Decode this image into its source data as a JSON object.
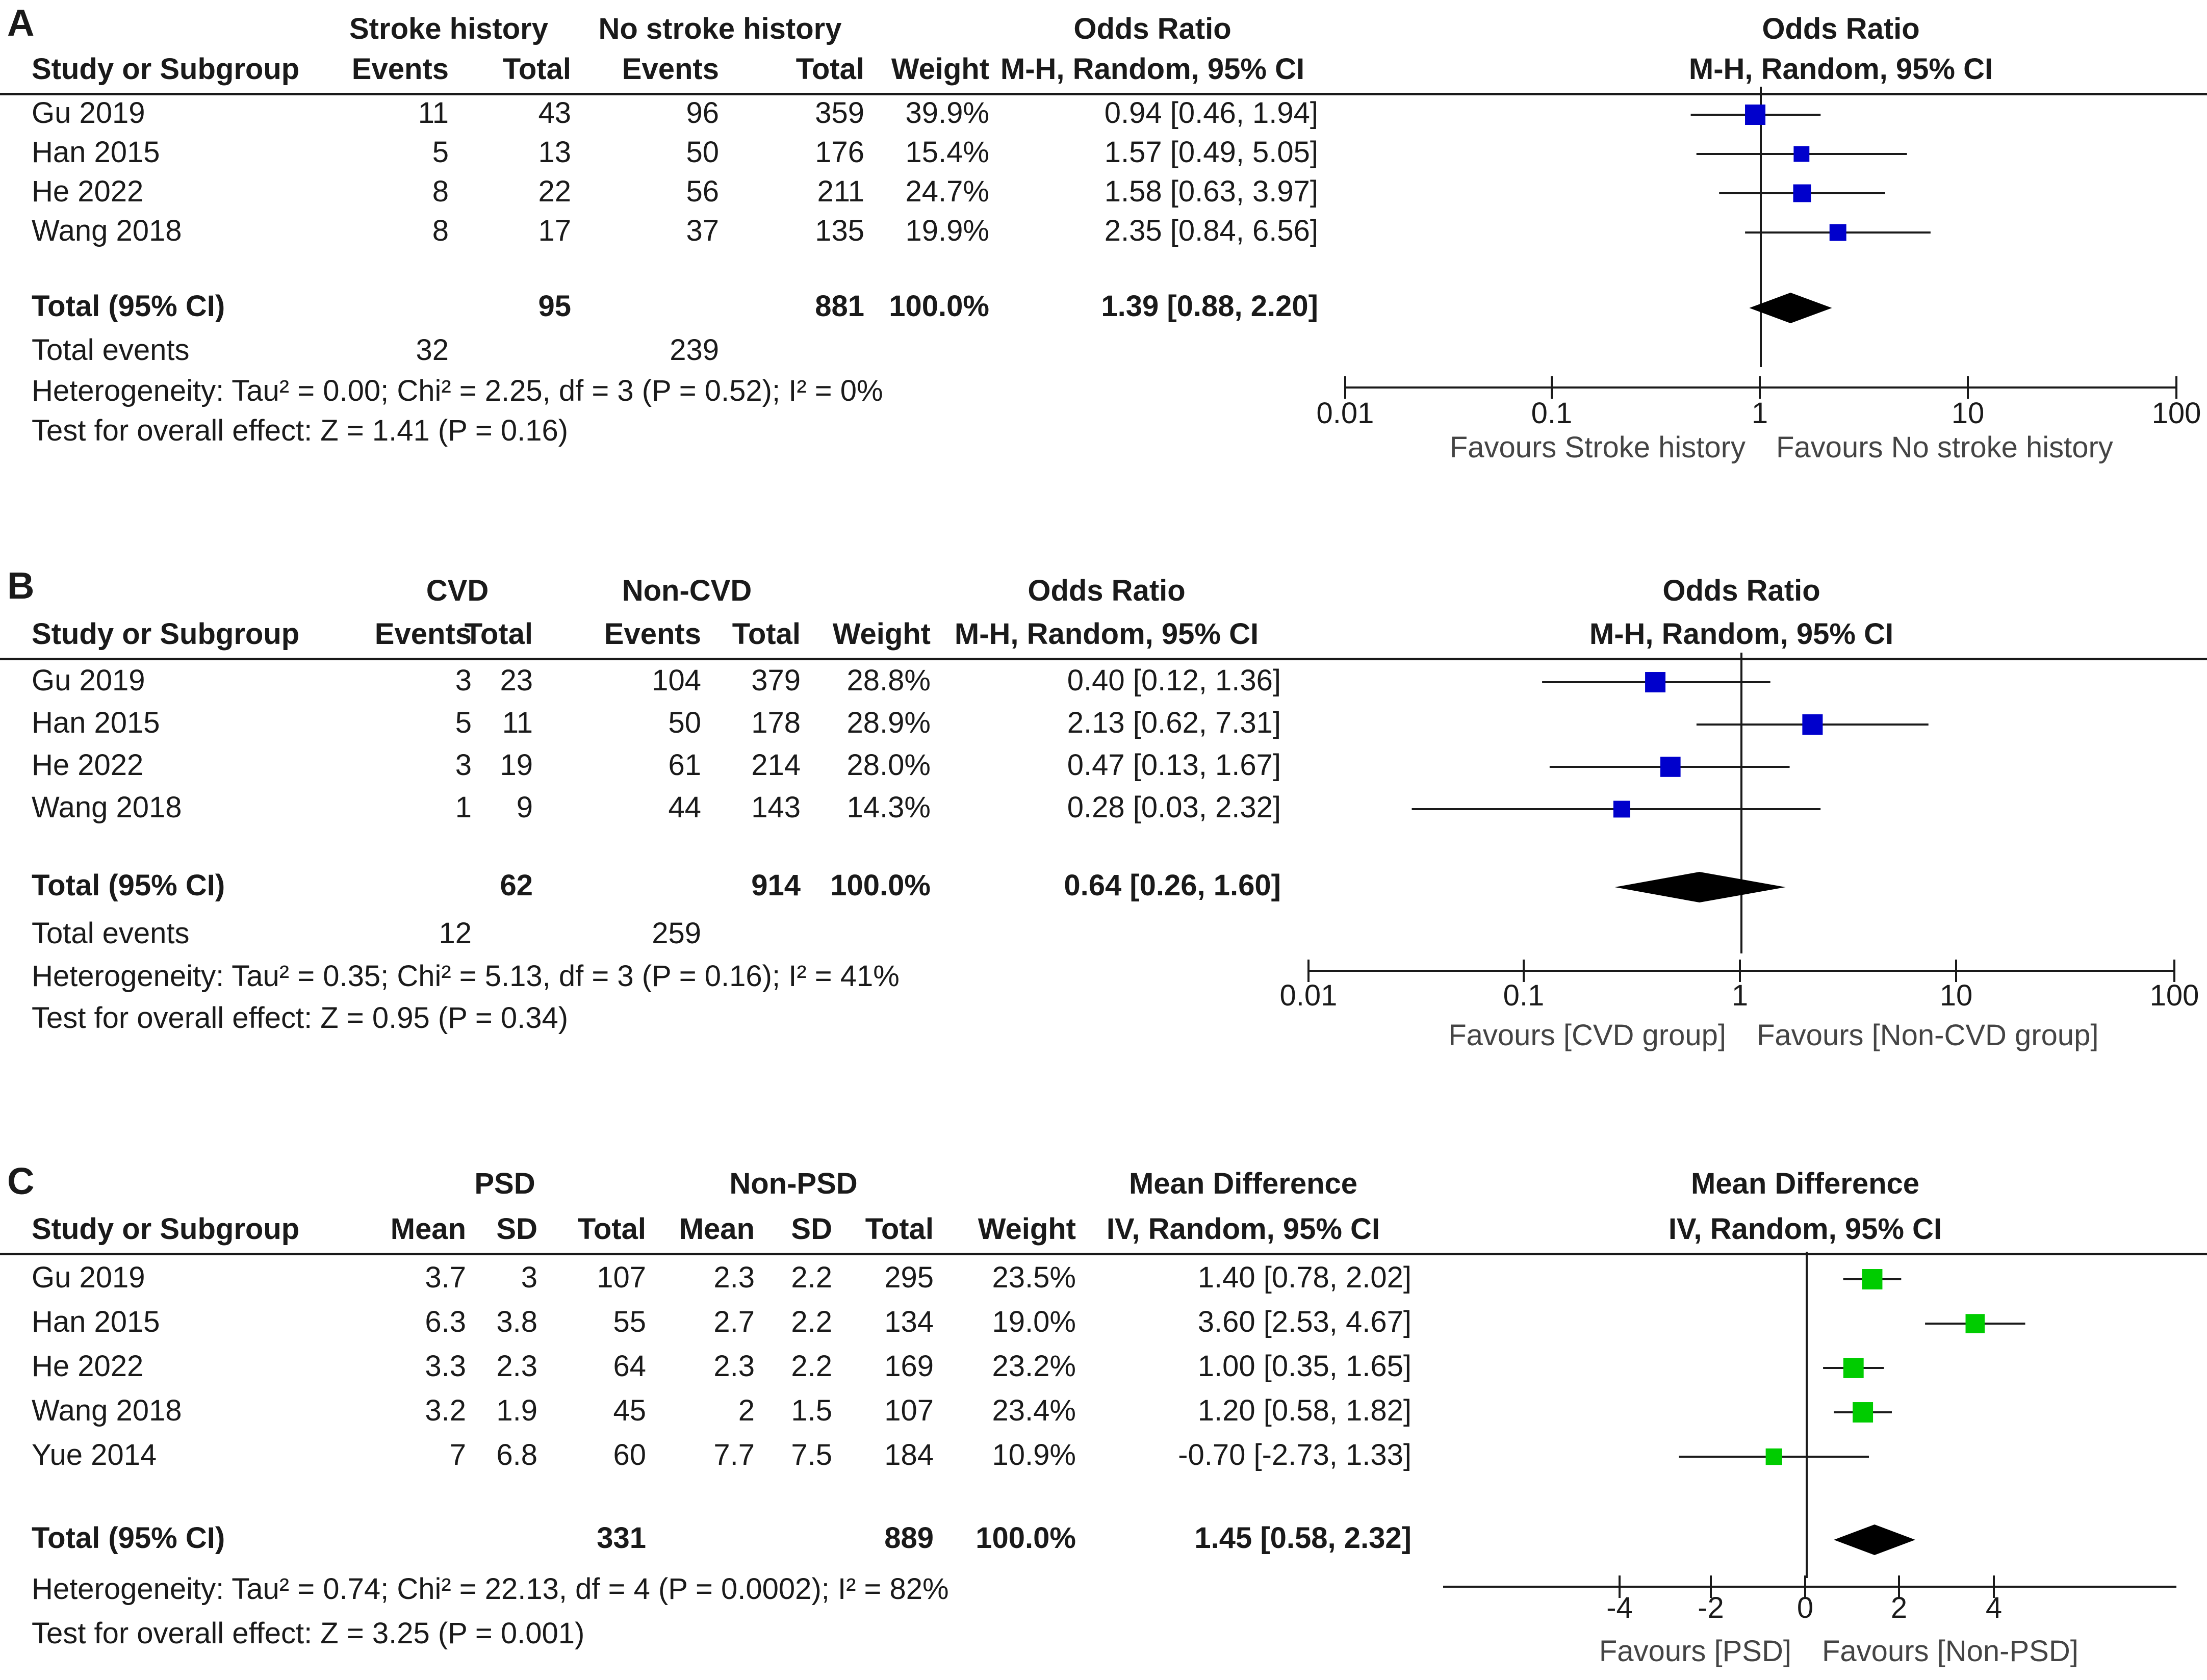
{
  "chart_data": [
    {
      "panel": "A",
      "type": "forest",
      "group1_label": "Stroke history",
      "group2_label": "No stroke history",
      "effect_label": "Odds Ratio",
      "method_label": "M-H, Random, 95% CI",
      "header": {
        "study": "Study or Subgroup",
        "g1": [
          "Events",
          "Total"
        ],
        "g2": [
          "Events",
          "Total"
        ],
        "weight": "Weight"
      },
      "scale": "log",
      "ticks": [
        0.01,
        0.1,
        1,
        10,
        100
      ],
      "tick_labels": [
        "0.01",
        "0.1",
        "1",
        "10",
        "100"
      ],
      "favours_left": "Favours Stroke history",
      "favours_right": "Favours No stroke history",
      "marker_color": "#0000cc",
      "studies": [
        {
          "name": "Gu 2019",
          "g1": [
            "11",
            "43"
          ],
          "g2": [
            "96",
            "359"
          ],
          "weight": "39.9%",
          "ci_text": "0.94 [0.46, 1.94]",
          "est": 0.94,
          "lo": 0.46,
          "hi": 1.94,
          "w": 39.9
        },
        {
          "name": "Han 2015",
          "g1": [
            "5",
            "13"
          ],
          "g2": [
            "50",
            "176"
          ],
          "weight": "15.4%",
          "ci_text": "1.57 [0.49, 5.05]",
          "est": 1.57,
          "lo": 0.49,
          "hi": 5.05,
          "w": 15.4
        },
        {
          "name": "He 2022",
          "g1": [
            "8",
            "22"
          ],
          "g2": [
            "56",
            "211"
          ],
          "weight": "24.7%",
          "ci_text": "1.58 [0.63, 3.97]",
          "est": 1.58,
          "lo": 0.63,
          "hi": 3.97,
          "w": 24.7
        },
        {
          "name": "Wang 2018",
          "g1": [
            "8",
            "17"
          ],
          "g2": [
            "37",
            "135"
          ],
          "weight": "19.9%",
          "ci_text": "2.35 [0.84, 6.56]",
          "est": 2.35,
          "lo": 0.84,
          "hi": 6.56,
          "w": 19.9
        }
      ],
      "total": {
        "label": "Total (95% CI)",
        "g1_total": "95",
        "g2_total": "881",
        "weight": "100.0%",
        "ci_text": "1.39 [0.88, 2.20]",
        "est": 1.39,
        "lo": 0.88,
        "hi": 2.2
      },
      "total_events": {
        "label": "Total events",
        "g1": "32",
        "g2": "239"
      },
      "heterogeneity": "Heterogeneity: Tau² = 0.00; Chi² = 2.25, df = 3 (P = 0.52); I² = 0%",
      "overall_effect": "Test for overall effect: Z = 1.41 (P = 0.16)"
    },
    {
      "panel": "B",
      "type": "forest",
      "group1_label": "CVD",
      "group2_label": "Non-CVD",
      "effect_label": "Odds Ratio",
      "method_label": "M-H, Random, 95% CI",
      "header": {
        "study": "Study or Subgroup",
        "g1": [
          "Events",
          "Total"
        ],
        "g2": [
          "Events",
          "Total"
        ],
        "weight": "Weight"
      },
      "scale": "log",
      "ticks": [
        0.01,
        0.1,
        1,
        10,
        100
      ],
      "tick_labels": [
        "0.01",
        "0.1",
        "1",
        "10",
        "100"
      ],
      "favours_left": "Favours [CVD group]",
      "favours_right": "Favours [Non-CVD group]",
      "marker_color": "#0000cc",
      "studies": [
        {
          "name": "Gu 2019",
          "g1": [
            "3",
            "23"
          ],
          "g2": [
            "104",
            "379"
          ],
          "weight": "28.8%",
          "ci_text": "0.40 [0.12, 1.36]",
          "est": 0.4,
          "lo": 0.12,
          "hi": 1.36,
          "w": 28.8
        },
        {
          "name": "Han 2015",
          "g1": [
            "5",
            "11"
          ],
          "g2": [
            "50",
            "178"
          ],
          "weight": "28.9%",
          "ci_text": "2.13 [0.62, 7.31]",
          "est": 2.13,
          "lo": 0.62,
          "hi": 7.31,
          "w": 28.9
        },
        {
          "name": "He 2022",
          "g1": [
            "3",
            "19"
          ],
          "g2": [
            "61",
            "214"
          ],
          "weight": "28.0%",
          "ci_text": "0.47 [0.13, 1.67]",
          "est": 0.47,
          "lo": 0.13,
          "hi": 1.67,
          "w": 28.0
        },
        {
          "name": "Wang 2018",
          "g1": [
            "1",
            "9"
          ],
          "g2": [
            "44",
            "143"
          ],
          "weight": "14.3%",
          "ci_text": "0.28 [0.03, 2.32]",
          "est": 0.28,
          "lo": 0.03,
          "hi": 2.32,
          "w": 14.3
        }
      ],
      "total": {
        "label": "Total (95% CI)",
        "g1_total": "62",
        "g2_total": "914",
        "weight": "100.0%",
        "ci_text": "0.64 [0.26, 1.60]",
        "est": 0.64,
        "lo": 0.26,
        "hi": 1.6
      },
      "total_events": {
        "label": "Total events",
        "g1": "12",
        "g2": "259"
      },
      "heterogeneity": "Heterogeneity: Tau² = 0.35; Chi² = 5.13, df = 3 (P = 0.16); I² = 41%",
      "overall_effect": "Test for overall effect: Z = 0.95 (P = 0.34)"
    },
    {
      "panel": "C",
      "type": "forest",
      "group1_label": "PSD",
      "group2_label": "Non-PSD",
      "effect_label": "Mean Difference",
      "method_label": "IV, Random, 95% CI",
      "header": {
        "study": "Study or Subgroup",
        "g1": [
          "Mean",
          "SD",
          "Total"
        ],
        "g2": [
          "Mean",
          "SD",
          "Total"
        ],
        "weight": "Weight"
      },
      "scale": "linear",
      "xlim": [
        -8,
        8
      ],
      "ticks": [
        -4,
        -2,
        0,
        2,
        4
      ],
      "tick_labels": [
        "-4",
        "-2",
        "0",
        "2",
        "4"
      ],
      "favours_left": "Favours [PSD]",
      "favours_right": "Favours [Non-PSD]",
      "marker_color": "#00cc00",
      "studies": [
        {
          "name": "Gu 2019",
          "g1": [
            "3.7",
            "3",
            "107"
          ],
          "g2": [
            "2.3",
            "2.2",
            "295"
          ],
          "weight": "23.5%",
          "ci_text": "1.40 [0.78, 2.02]",
          "est": 1.4,
          "lo": 0.78,
          "hi": 2.02,
          "w": 23.5
        },
        {
          "name": "Han 2015",
          "g1": [
            "6.3",
            "3.8",
            "55"
          ],
          "g2": [
            "2.7",
            "2.2",
            "134"
          ],
          "weight": "19.0%",
          "ci_text": "3.60 [2.53, 4.67]",
          "est": 3.6,
          "lo": 2.53,
          "hi": 4.67,
          "w": 19.0
        },
        {
          "name": "He 2022",
          "g1": [
            "3.3",
            "2.3",
            "64"
          ],
          "g2": [
            "2.3",
            "2.2",
            "169"
          ],
          "weight": "23.2%",
          "ci_text": "1.00 [0.35, 1.65]",
          "est": 1.0,
          "lo": 0.35,
          "hi": 1.65,
          "w": 23.2
        },
        {
          "name": "Wang 2018",
          "g1": [
            "3.2",
            "1.9",
            "45"
          ],
          "g2": [
            "2",
            "1.5",
            "107"
          ],
          "weight": "23.4%",
          "ci_text": "1.20 [0.58, 1.82]",
          "est": 1.2,
          "lo": 0.58,
          "hi": 1.82,
          "w": 23.4
        },
        {
          "name": "Yue 2014",
          "g1": [
            "7",
            "6.8",
            "60"
          ],
          "g2": [
            "7.7",
            "7.5",
            "184"
          ],
          "weight": "10.9%",
          "ci_text": "-0.70 [-2.73, 1.33]",
          "est": -0.7,
          "lo": -2.73,
          "hi": 1.33,
          "w": 10.9
        }
      ],
      "total": {
        "label": "Total (95% CI)",
        "g1_total": "331",
        "g2_total": "889",
        "weight": "100.0%",
        "ci_text": "1.45 [0.58, 2.32]",
        "est": 1.45,
        "lo": 0.58,
        "hi": 2.32
      },
      "total_events": null,
      "heterogeneity": "Heterogeneity: Tau² = 0.74; Chi² = 22.13, df = 4 (P = 0.0002); I² = 82%",
      "overall_effect": "Test for overall effect: Z = 3.25 (P = 0.001)"
    }
  ]
}
